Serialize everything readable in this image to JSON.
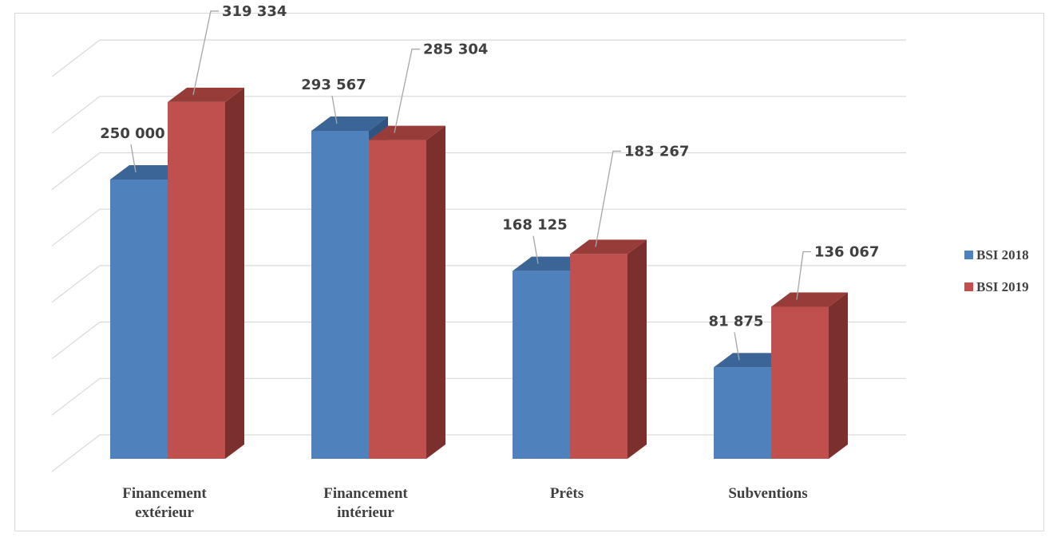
{
  "chart_data": {
    "type": "bar",
    "categories": [
      [
        "Financement",
        "extérieur"
      ],
      [
        "Financement",
        "intérieur"
      ],
      [
        "Prêts"
      ],
      [
        "Subventions"
      ]
    ],
    "series": [
      {
        "name": "BSI 2018",
        "values": [
          250000,
          293567,
          168125,
          81875
        ],
        "labels": [
          "250 000",
          "293 567",
          "168 125",
          "81 875"
        ]
      },
      {
        "name": "BSI 2019",
        "values": [
          319334,
          285304,
          183267,
          136067
        ],
        "labels": [
          "319 334",
          "285 304",
          "183 267",
          "136 067"
        ]
      }
    ],
    "ylim": [
      0,
      350000
    ],
    "grid": true,
    "legend_position": "right",
    "colors": {
      "BSI 2018": {
        "front": "#4f81bd",
        "top": "#3a6596",
        "side": "#2f5482"
      },
      "BSI 2019": {
        "front": "#c0504d",
        "top": "#983c3a",
        "side": "#7b302e"
      },
      "grid": "#d9d9d9",
      "leader": "#a6a6a6"
    }
  }
}
